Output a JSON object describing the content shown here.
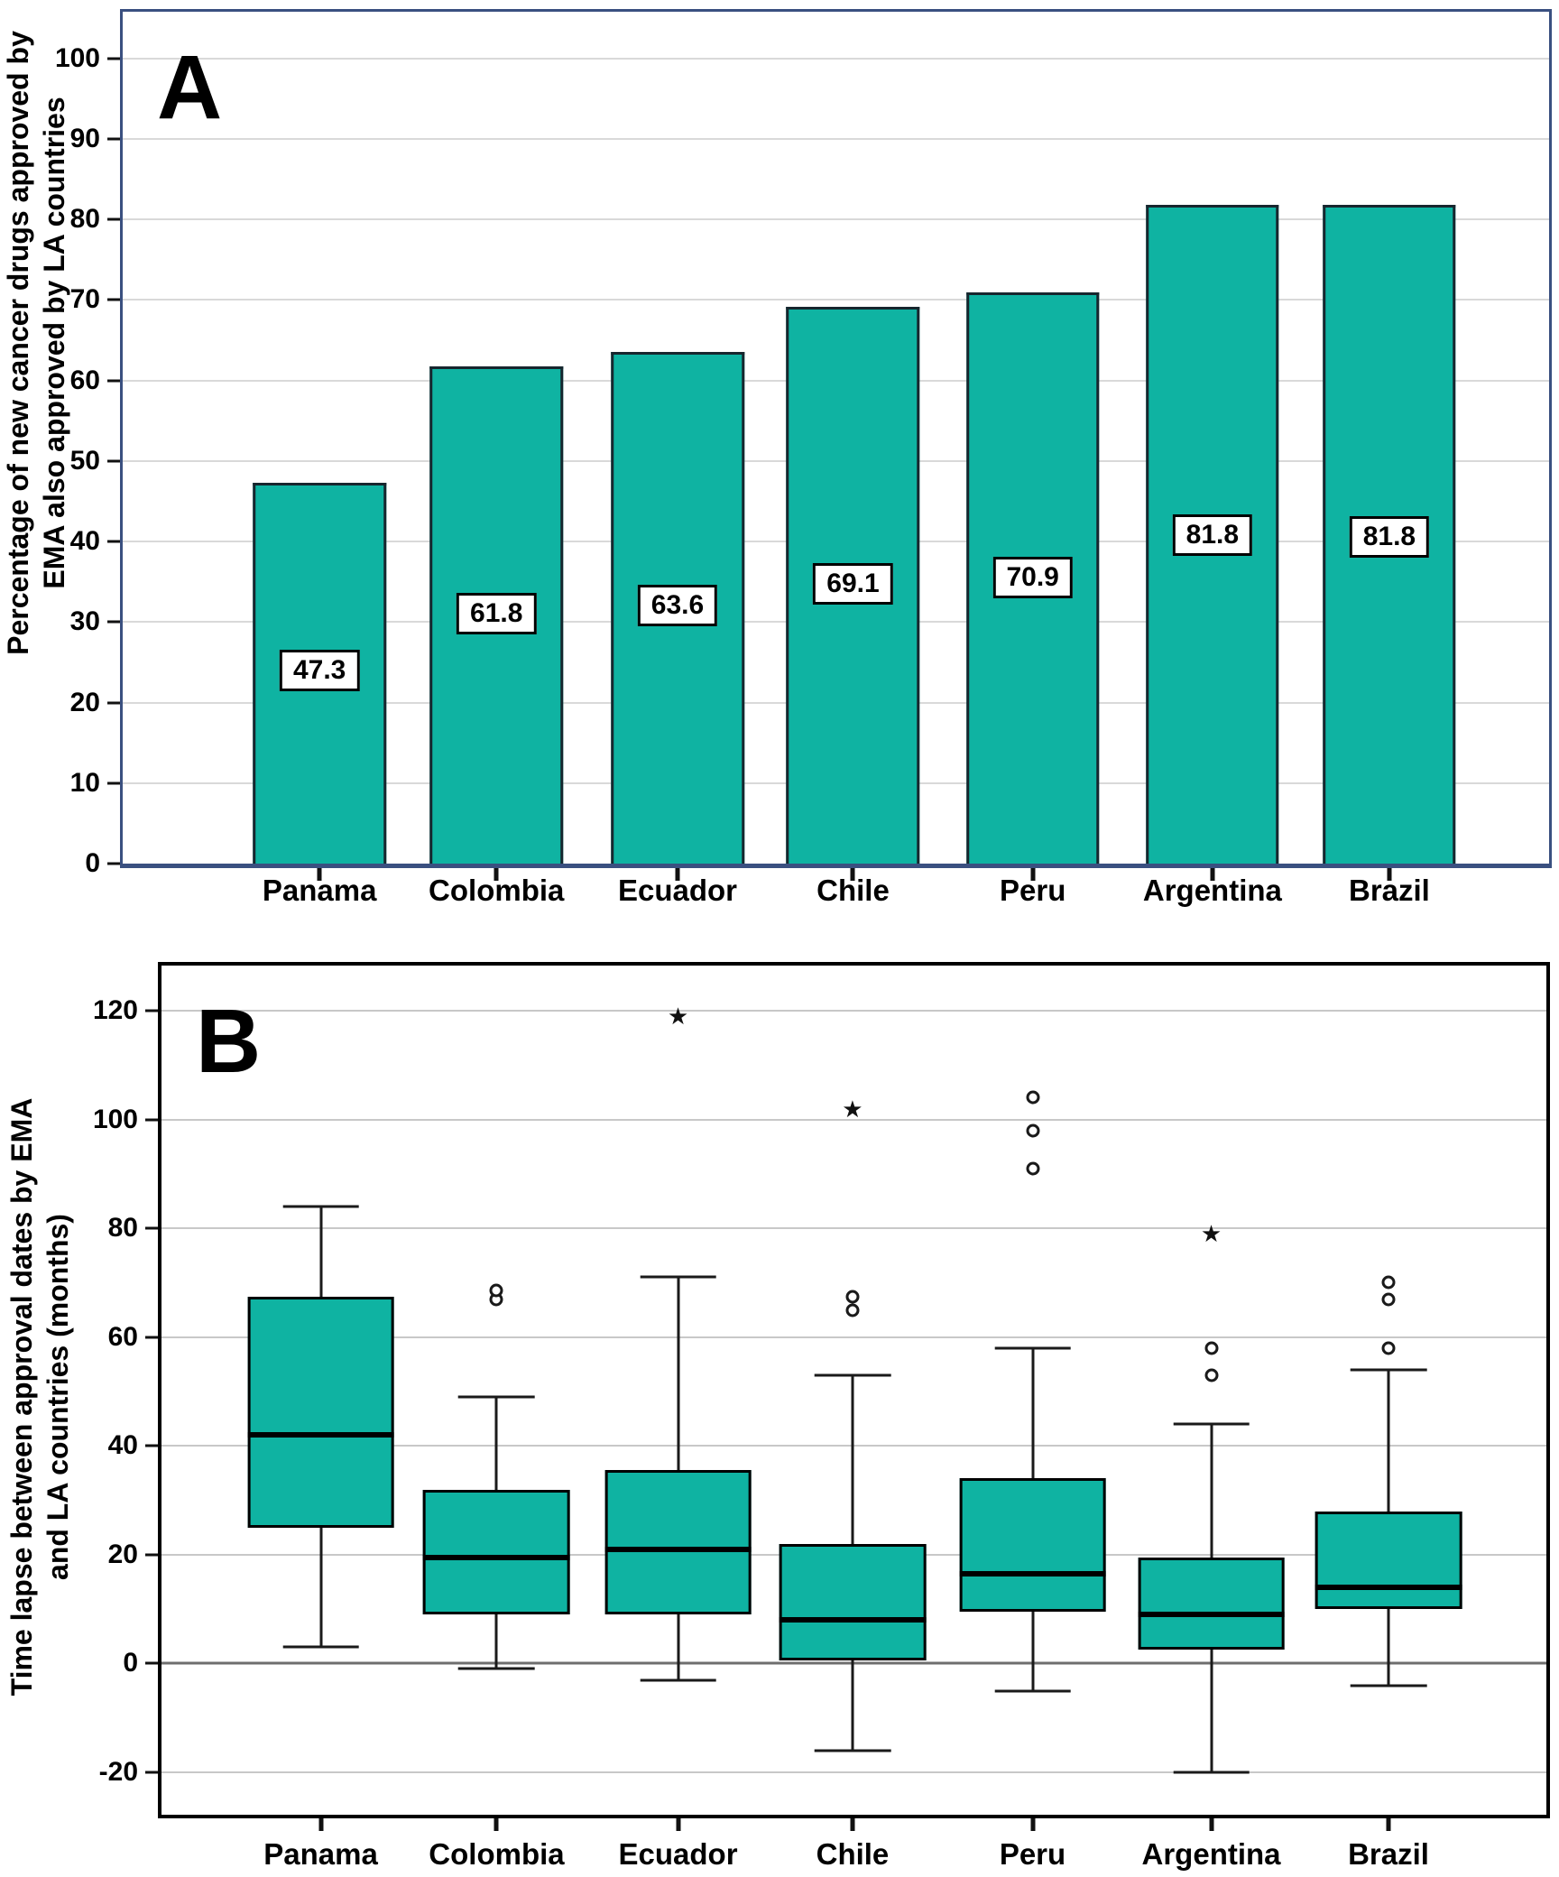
{
  "figure": {
    "panel_a": {
      "letter": "A",
      "y_axis_title_line1": "Percentage of new cancer drugs approved by",
      "y_axis_title_line2": "EMA also approved by LA countries"
    },
    "panel_b": {
      "letter": "B",
      "y_axis_title_line1": "Time lapse between approval dates by EMA",
      "y_axis_title_line2": "and LA countries (months)"
    }
  },
  "colors": {
    "teal_fill": "#0FB3A2",
    "bar_outline": "#17262E",
    "panel_a_frame": "#3A5080",
    "panel_b_frame": "#000000",
    "gridline_a": "#D9D9D9",
    "gridline_b": "#C8C8C8",
    "zero_line": "#6E6E6E",
    "text": "#000000"
  },
  "chart_data": [
    {
      "type": "bar",
      "panel": "A",
      "ylabel": "Percentage of new cancer drugs approved by EMA also approved by LA countries",
      "categories": [
        "Panama",
        "Colombia",
        "Ecuador",
        "Chile",
        "Peru",
        "Argentina",
        "Brazil"
      ],
      "values": [
        47.3,
        61.8,
        63.6,
        69.1,
        70.9,
        81.8,
        81.8
      ],
      "value_labels": [
        "47.3",
        "61.8",
        "63.6",
        "69.1",
        "70.9",
        "81.8",
        "81.8"
      ],
      "value_label_heights": [
        24,
        31,
        32,
        34.7,
        35.5,
        40.8,
        40.6
      ],
      "yticks": [
        0,
        10,
        20,
        30,
        40,
        50,
        60,
        70,
        80,
        90,
        100
      ],
      "ylim": [
        0,
        105.8
      ],
      "x_fracs": [
        13.8,
        26.2,
        38.9,
        51.2,
        63.8,
        76.4,
        88.8
      ],
      "bar_width_pct": 9.33,
      "grid": true,
      "legend": "none"
    },
    {
      "type": "boxplot",
      "panel": "B",
      "ylabel": "Time lapse between approval dates by EMA and LA countries (months)",
      "categories": [
        "Panama",
        "Colombia",
        "Ecuador",
        "Chile",
        "Peru",
        "Argentina",
        "Brazil"
      ],
      "yticks": [
        -20,
        0,
        20,
        40,
        60,
        80,
        100,
        120
      ],
      "ylim": [
        -27.8,
        128.3
      ],
      "x_fracs": [
        11.5,
        24.2,
        37.3,
        49.9,
        62.9,
        75.8,
        88.6
      ],
      "box_width_pct": 10.6,
      "grid": true,
      "legend": "none",
      "boxes": [
        {
          "category": "Panama",
          "whisker_low": 3,
          "q1": 25,
          "median": 42,
          "q3": 67.5,
          "whisker_high": 84,
          "outliers_circle": [],
          "outliers_star": []
        },
        {
          "category": "Colombia",
          "whisker_low": -1,
          "q1": 9,
          "median": 19.5,
          "q3": 32,
          "whisker_high": 49,
          "outliers_circle": [
            67,
            68.5
          ],
          "outliers_star": []
        },
        {
          "category": "Ecuador",
          "whisker_low": -3,
          "q1": 9,
          "median": 21,
          "q3": 35.5,
          "whisker_high": 71,
          "outliers_circle": [],
          "outliers_star": [
            119
          ]
        },
        {
          "category": "Chile",
          "whisker_low": -16,
          "q1": 0.5,
          "median": 8,
          "q3": 22,
          "whisker_high": 53,
          "outliers_circle": [
            65,
            67.5
          ],
          "outliers_star": [
            102
          ]
        },
        {
          "category": "Peru",
          "whisker_low": -5,
          "q1": 9.5,
          "median": 16.5,
          "q3": 34,
          "whisker_high": 58,
          "outliers_circle": [
            91,
            98,
            104
          ],
          "outliers_star": []
        },
        {
          "category": "Argentina",
          "whisker_low": -20,
          "q1": 2.5,
          "median": 9,
          "q3": 19.5,
          "whisker_high": 44,
          "outliers_circle": [
            53,
            58
          ],
          "outliers_star": [
            79
          ]
        },
        {
          "category": "Brazil",
          "whisker_low": -4,
          "q1": 10,
          "median": 14,
          "q3": 28,
          "whisker_high": 54,
          "outliers_circle": [
            58,
            67,
            70
          ],
          "outliers_star": []
        }
      ]
    }
  ]
}
